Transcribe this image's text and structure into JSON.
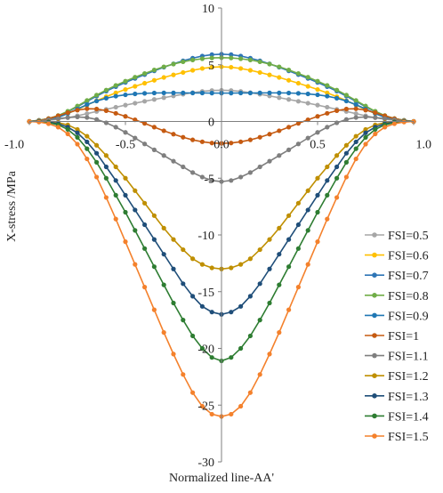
{
  "chart_data": {
    "type": "line",
    "title": "",
    "xlabel": "Normalized line-AA'",
    "ylabel": "X-stress /MPa",
    "xlim": [
      -1.0,
      1.0
    ],
    "ylim": [
      -30,
      10
    ],
    "x_ticks": [
      -1.0,
      -0.5,
      0.0,
      0.5,
      1.0
    ],
    "x_tick_labels": [
      "-1.0",
      "-0.5",
      "0.0",
      "0.5",
      "1.0"
    ],
    "y_ticks": [
      10,
      5,
      0,
      -5,
      -10,
      -15,
      -20,
      -25,
      -30
    ],
    "y_tick_labels": [
      "10",
      "5",
      "0",
      "-5",
      "-10",
      "-15",
      "-20",
      "-25",
      "-30"
    ],
    "grid": false,
    "legend_position": "bottom-right",
    "x": [
      -1.0,
      -0.95,
      -0.9,
      -0.85,
      -0.8,
      -0.75,
      -0.7,
      -0.65,
      -0.6,
      -0.55,
      -0.5,
      -0.45,
      -0.4,
      -0.35,
      -0.3,
      -0.25,
      -0.2,
      -0.15,
      -0.1,
      -0.05,
      0.0,
      0.05,
      0.1,
      0.15,
      0.2,
      0.25,
      0.3,
      0.35,
      0.4,
      0.45,
      0.5,
      0.55,
      0.6,
      0.65,
      0.7,
      0.75,
      0.8,
      0.85,
      0.9,
      0.95,
      1.0
    ],
    "series": [
      {
        "name": "FSI=0.5",
        "color": "#A6A6A6",
        "values": [
          0.0,
          0.05,
          0.11,
          0.2,
          0.33,
          0.5,
          0.69,
          0.88,
          1.07,
          1.26,
          1.44,
          1.61,
          1.78,
          1.94,
          2.1,
          2.25,
          2.4,
          2.54,
          2.65,
          2.73,
          2.75,
          2.73,
          2.65,
          2.54,
          2.4,
          2.25,
          2.1,
          1.94,
          1.78,
          1.61,
          1.44,
          1.26,
          1.07,
          0.88,
          0.69,
          0.5,
          0.33,
          0.2,
          0.11,
          0.05,
          0.0
        ]
      },
      {
        "name": "FSI=0.6",
        "color": "#FFC000",
        "values": [
          0.0,
          0.08,
          0.2,
          0.4,
          0.7,
          1.06,
          1.45,
          1.83,
          2.19,
          2.52,
          2.82,
          3.1,
          3.37,
          3.63,
          3.88,
          4.11,
          4.32,
          4.51,
          4.67,
          4.78,
          4.82,
          4.78,
          4.67,
          4.51,
          4.32,
          4.11,
          3.88,
          3.63,
          3.37,
          3.1,
          2.82,
          2.52,
          2.19,
          1.83,
          1.45,
          1.06,
          0.7,
          0.4,
          0.2,
          0.08,
          0.0
        ]
      },
      {
        "name": "FSI=0.7",
        "color": "#2E75B6",
        "values": [
          0.0,
          0.1,
          0.25,
          0.5,
          0.86,
          1.3,
          1.77,
          2.23,
          2.67,
          3.07,
          3.44,
          3.79,
          4.13,
          4.46,
          4.78,
          5.08,
          5.35,
          5.58,
          5.77,
          5.89,
          5.93,
          5.89,
          5.77,
          5.58,
          5.35,
          5.08,
          4.78,
          4.46,
          4.13,
          3.79,
          3.44,
          3.07,
          2.67,
          2.23,
          1.77,
          1.3,
          0.86,
          0.5,
          0.25,
          0.1,
          0.0
        ]
      },
      {
        "name": "FSI=0.8",
        "color": "#70AD47",
        "values": [
          0.0,
          0.1,
          0.26,
          0.52,
          0.9,
          1.36,
          1.85,
          2.33,
          2.77,
          3.18,
          3.55,
          3.9,
          4.23,
          4.54,
          4.82,
          5.06,
          5.26,
          5.42,
          5.53,
          5.6,
          5.62,
          5.6,
          5.53,
          5.42,
          5.26,
          5.06,
          4.82,
          4.54,
          4.23,
          3.9,
          3.55,
          3.18,
          2.77,
          2.33,
          1.85,
          1.36,
          0.9,
          0.52,
          0.26,
          0.1,
          0.0
        ]
      },
      {
        "name": "FSI=0.9",
        "color": "#1F77B4",
        "values": [
          0.0,
          0.05,
          0.15,
          0.35,
          0.7,
          1.1,
          1.48,
          1.8,
          2.05,
          2.23,
          2.35,
          2.43,
          2.48,
          2.51,
          2.52,
          2.52,
          2.52,
          2.51,
          2.51,
          2.5,
          2.5,
          2.5,
          2.51,
          2.51,
          2.52,
          2.52,
          2.52,
          2.51,
          2.48,
          2.43,
          2.35,
          2.23,
          2.05,
          1.8,
          1.48,
          1.1,
          0.7,
          0.35,
          0.15,
          0.05,
          0.0
        ]
      },
      {
        "name": "FSI=1",
        "color": "#C55A11",
        "values": [
          0.0,
          0.08,
          0.25,
          0.5,
          0.78,
          1.0,
          1.12,
          1.1,
          0.95,
          0.72,
          0.45,
          0.15,
          -0.17,
          -0.5,
          -0.82,
          -1.12,
          -1.39,
          -1.62,
          -1.79,
          -1.9,
          -1.93,
          -1.9,
          -1.79,
          -1.62,
          -1.39,
          -1.12,
          -0.82,
          -0.5,
          -0.17,
          0.15,
          0.45,
          0.72,
          0.95,
          1.1,
          1.12,
          1.0,
          0.78,
          0.5,
          0.25,
          0.08,
          0.0
        ]
      },
      {
        "name": "FSI=1.1",
        "color": "#7F7F7F",
        "values": [
          0.0,
          0.05,
          0.15,
          0.25,
          0.35,
          0.4,
          0.35,
          0.18,
          -0.12,
          -0.5,
          -0.96,
          -1.46,
          -1.98,
          -2.5,
          -3.0,
          -3.5,
          -4.0,
          -4.5,
          -4.9,
          -5.2,
          -5.3,
          -5.2,
          -4.9,
          -4.5,
          -4.0,
          -3.5,
          -3.0,
          -2.5,
          -1.98,
          -1.46,
          -0.96,
          -0.5,
          -0.12,
          0.18,
          0.35,
          0.4,
          0.35,
          0.25,
          0.15,
          0.05,
          0.0
        ]
      },
      {
        "name": "FSI=1.2",
        "color": "#BF8F00",
        "values": [
          0.0,
          0.0,
          -0.02,
          -0.1,
          -0.3,
          -0.7,
          -1.3,
          -2.1,
          -3.0,
          -4.0,
          -5.0,
          -6.1,
          -7.2,
          -8.3,
          -9.4,
          -10.4,
          -11.3,
          -12.1,
          -12.6,
          -12.9,
          -13.0,
          -12.9,
          -12.6,
          -12.1,
          -11.3,
          -10.4,
          -9.4,
          -8.3,
          -7.2,
          -6.1,
          -5.0,
          -4.0,
          -3.0,
          -2.1,
          -1.3,
          -0.7,
          -0.3,
          -0.1,
          -0.02,
          0.0,
          0.0
        ]
      },
      {
        "name": "FSI=1.3",
        "color": "#1F4E79",
        "values": [
          0.0,
          0.0,
          -0.05,
          -0.2,
          -0.5,
          -1.0,
          -1.8,
          -2.8,
          -4.0,
          -5.2,
          -6.5,
          -7.8,
          -9.1,
          -10.4,
          -11.7,
          -13.0,
          -14.3,
          -15.4,
          -16.3,
          -16.8,
          -17.0,
          -16.8,
          -16.3,
          -15.4,
          -14.3,
          -13.0,
          -11.7,
          -10.4,
          -9.1,
          -7.8,
          -6.5,
          -5.2,
          -4.0,
          -2.8,
          -1.8,
          -1.0,
          -0.5,
          -0.2,
          -0.05,
          0.0,
          0.0
        ]
      },
      {
        "name": "FSI=1.4",
        "color": "#2E7D32",
        "values": [
          0.0,
          -0.02,
          -0.1,
          -0.3,
          -0.7,
          -1.4,
          -2.4,
          -3.6,
          -5.0,
          -6.5,
          -8.0,
          -9.6,
          -11.2,
          -12.8,
          -14.4,
          -16.0,
          -17.5,
          -18.9,
          -20.0,
          -20.8,
          -21.1,
          -20.8,
          -20.0,
          -18.9,
          -17.5,
          -16.0,
          -14.4,
          -12.8,
          -11.2,
          -9.6,
          -8.0,
          -6.5,
          -5.0,
          -3.6,
          -2.4,
          -1.4,
          -0.7,
          -0.3,
          -0.1,
          -0.02,
          0.0
        ]
      },
      {
        "name": "FSI=1.5",
        "color": "#F4812C",
        "values": [
          0.0,
          -0.05,
          -0.2,
          -0.5,
          -1.1,
          -2.0,
          -3.3,
          -4.9,
          -6.7,
          -8.6,
          -10.6,
          -12.6,
          -14.6,
          -16.6,
          -18.6,
          -20.5,
          -22.3,
          -23.9,
          -25.1,
          -25.8,
          -26.0,
          -25.8,
          -25.1,
          -23.9,
          -22.3,
          -20.5,
          -18.6,
          -16.6,
          -14.6,
          -12.6,
          -10.6,
          -8.6,
          -6.7,
          -4.9,
          -3.3,
          -2.0,
          -1.1,
          -0.5,
          -0.2,
          -0.05,
          0.0
        ]
      }
    ]
  }
}
